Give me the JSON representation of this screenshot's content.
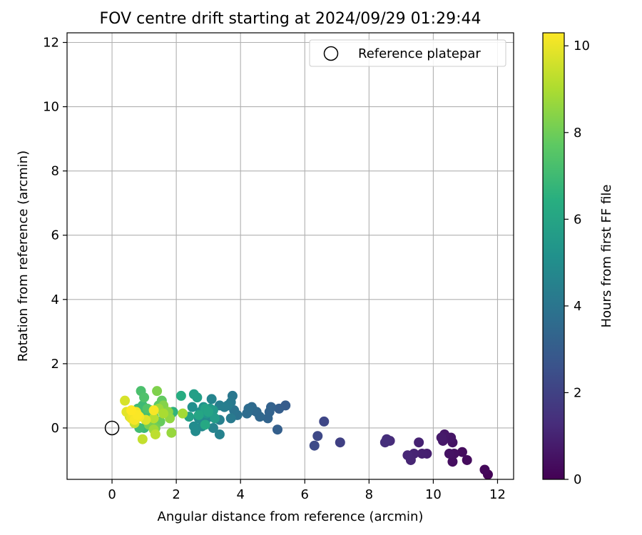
{
  "chart_data": {
    "type": "scatter",
    "title": "FOV centre drift starting at 2024/09/29 01:29:44",
    "xlabel": "Angular distance from reference (arcmin)",
    "ylabel": "Rotation from reference (arcmin)",
    "xlim": [
      -1.4,
      12.5
    ],
    "ylim": [
      -1.6,
      12.3
    ],
    "xticks": [
      0,
      2,
      4,
      6,
      8,
      10,
      12
    ],
    "yticks": [
      0,
      2,
      4,
      6,
      8,
      10,
      12
    ],
    "grid": true,
    "legend": {
      "position": "top-right",
      "entries": [
        "Reference platepar"
      ]
    },
    "colorbar": {
      "label": "Hours from first FF file",
      "range": [
        0,
        10.3
      ],
      "ticks": [
        0,
        2,
        4,
        6,
        8,
        10
      ],
      "colormap": "viridis"
    },
    "reference_point": {
      "x": 0,
      "y": 0
    },
    "points": [
      {
        "x": 11.7,
        "y": -1.45,
        "c": 0.1
      },
      {
        "x": 11.6,
        "y": -1.3,
        "c": 0.2
      },
      {
        "x": 11.05,
        "y": -1.0,
        "c": 0.3
      },
      {
        "x": 10.9,
        "y": -0.75,
        "c": 0.35
      },
      {
        "x": 10.6,
        "y": -1.05,
        "c": 0.4
      },
      {
        "x": 10.65,
        "y": -0.8,
        "c": 0.45
      },
      {
        "x": 10.5,
        "y": -0.8,
        "c": 0.5
      },
      {
        "x": 10.6,
        "y": -0.45,
        "c": 0.55
      },
      {
        "x": 10.55,
        "y": -0.3,
        "c": 0.6
      },
      {
        "x": 10.35,
        "y": -0.2,
        "c": 0.65
      },
      {
        "x": 10.3,
        "y": -0.4,
        "c": 0.7
      },
      {
        "x": 10.25,
        "y": -0.3,
        "c": 0.75
      },
      {
        "x": 9.8,
        "y": -0.8,
        "c": 0.9
      },
      {
        "x": 9.65,
        "y": -0.8,
        "c": 0.95
      },
      {
        "x": 9.55,
        "y": -0.45,
        "c": 1.0
      },
      {
        "x": 9.4,
        "y": -0.8,
        "c": 1.05
      },
      {
        "x": 9.3,
        "y": -1.0,
        "c": 1.1
      },
      {
        "x": 9.2,
        "y": -0.85,
        "c": 1.15
      },
      {
        "x": 8.65,
        "y": -0.4,
        "c": 1.3
      },
      {
        "x": 8.55,
        "y": -0.35,
        "c": 1.35
      },
      {
        "x": 8.5,
        "y": -0.45,
        "c": 1.4
      },
      {
        "x": 7.1,
        "y": -0.45,
        "c": 2.0
      },
      {
        "x": 6.6,
        "y": 0.2,
        "c": 2.2
      },
      {
        "x": 6.4,
        "y": -0.25,
        "c": 2.3
      },
      {
        "x": 6.3,
        "y": -0.55,
        "c": 2.35
      },
      {
        "x": 5.4,
        "y": 0.7,
        "c": 3.0
      },
      {
        "x": 5.2,
        "y": 0.6,
        "c": 3.1
      },
      {
        "x": 5.15,
        "y": -0.05,
        "c": 3.15
      },
      {
        "x": 4.95,
        "y": 0.65,
        "c": 3.25
      },
      {
        "x": 4.9,
        "y": 0.5,
        "c": 3.3
      },
      {
        "x": 4.85,
        "y": 0.3,
        "c": 3.35
      },
      {
        "x": 4.6,
        "y": 0.35,
        "c": 3.45
      },
      {
        "x": 4.5,
        "y": 0.5,
        "c": 3.5
      },
      {
        "x": 4.4,
        "y": 0.55,
        "c": 3.55
      },
      {
        "x": 4.35,
        "y": 0.65,
        "c": 3.6
      },
      {
        "x": 4.25,
        "y": 0.6,
        "c": 3.65
      },
      {
        "x": 4.2,
        "y": 0.45,
        "c": 3.7
      },
      {
        "x": 3.9,
        "y": 0.4,
        "c": 3.9
      },
      {
        "x": 3.8,
        "y": 0.55,
        "c": 4.0
      },
      {
        "x": 3.75,
        "y": 1.0,
        "c": 4.1
      },
      {
        "x": 3.7,
        "y": 0.8,
        "c": 4.2
      },
      {
        "x": 3.7,
        "y": 0.3,
        "c": 4.25
      },
      {
        "x": 3.6,
        "y": 0.7,
        "c": 4.3
      },
      {
        "x": 3.5,
        "y": 0.65,
        "c": 4.35
      },
      {
        "x": 3.35,
        "y": 0.7,
        "c": 4.4
      },
      {
        "x": 3.35,
        "y": 0.25,
        "c": 4.5
      },
      {
        "x": 3.35,
        "y": -0.2,
        "c": 4.55
      },
      {
        "x": 3.15,
        "y": 0.0,
        "c": 4.6
      },
      {
        "x": 3.1,
        "y": 0.9,
        "c": 4.65
      },
      {
        "x": 3.05,
        "y": 0.35,
        "c": 4.7
      },
      {
        "x": 2.9,
        "y": 0.2,
        "c": 4.8
      },
      {
        "x": 2.8,
        "y": 0.05,
        "c": 4.85
      },
      {
        "x": 2.7,
        "y": 0.3,
        "c": 4.9
      },
      {
        "x": 2.6,
        "y": -0.1,
        "c": 4.95
      },
      {
        "x": 2.55,
        "y": 0.05,
        "c": 5.0
      },
      {
        "x": 2.5,
        "y": 0.65,
        "c": 5.1
      },
      {
        "x": 2.75,
        "y": 0.5,
        "c": 5.2
      },
      {
        "x": 2.85,
        "y": 0.65,
        "c": 5.3
      },
      {
        "x": 2.95,
        "y": 0.45,
        "c": 5.4
      },
      {
        "x": 3.05,
        "y": 0.6,
        "c": 5.5
      },
      {
        "x": 3.15,
        "y": 0.55,
        "c": 5.6
      },
      {
        "x": 3.2,
        "y": 0.3,
        "c": 5.7
      },
      {
        "x": 2.65,
        "y": 0.95,
        "c": 5.75
      },
      {
        "x": 2.55,
        "y": 1.05,
        "c": 5.8
      },
      {
        "x": 2.4,
        "y": 0.35,
        "c": 5.85
      },
      {
        "x": 2.9,
        "y": 0.6,
        "c": 5.95
      },
      {
        "x": 3.0,
        "y": 0.5,
        "c": 6.0
      },
      {
        "x": 2.7,
        "y": 0.4,
        "c": 6.1
      },
      {
        "x": 2.9,
        "y": 0.1,
        "c": 6.2
      },
      {
        "x": 2.15,
        "y": 1.0,
        "c": 6.4
      },
      {
        "x": 1.9,
        "y": 0.5,
        "c": 6.6
      },
      {
        "x": 1.85,
        "y": 0.45,
        "c": 6.7
      },
      {
        "x": 1.2,
        "y": 0.55,
        "c": 6.8
      },
      {
        "x": 1.0,
        "y": 0.0,
        "c": 6.9
      },
      {
        "x": 0.95,
        "y": 0.7,
        "c": 7.0
      },
      {
        "x": 0.8,
        "y": 0.6,
        "c": 7.05
      },
      {
        "x": 0.85,
        "y": 0.0,
        "c": 7.1
      },
      {
        "x": 1.05,
        "y": 0.45,
        "c": 7.2
      },
      {
        "x": 0.9,
        "y": 1.15,
        "c": 7.3
      },
      {
        "x": 1.0,
        "y": 0.95,
        "c": 7.4
      },
      {
        "x": 1.1,
        "y": 0.6,
        "c": 7.5
      },
      {
        "x": 1.3,
        "y": 0.35,
        "c": 7.6
      },
      {
        "x": 1.45,
        "y": 0.7,
        "c": 7.7
      },
      {
        "x": 1.55,
        "y": 0.85,
        "c": 7.8
      },
      {
        "x": 1.5,
        "y": 0.2,
        "c": 7.9
      },
      {
        "x": 1.7,
        "y": 0.5,
        "c": 8.0
      },
      {
        "x": 1.35,
        "y": 0.0,
        "c": 8.1
      },
      {
        "x": 1.15,
        "y": 0.1,
        "c": 8.2
      },
      {
        "x": 1.4,
        "y": 1.15,
        "c": 8.3
      },
      {
        "x": 1.6,
        "y": 0.7,
        "c": 8.4
      },
      {
        "x": 1.75,
        "y": 0.5,
        "c": 8.5
      },
      {
        "x": 1.8,
        "y": 0.3,
        "c": 8.6
      },
      {
        "x": 1.85,
        "y": -0.15,
        "c": 8.7
      },
      {
        "x": 1.45,
        "y": 0.6,
        "c": 8.8
      },
      {
        "x": 1.3,
        "y": -0.05,
        "c": 8.85
      },
      {
        "x": 2.2,
        "y": 0.45,
        "c": 8.9
      },
      {
        "x": 1.6,
        "y": 0.45,
        "c": 9.0
      },
      {
        "x": 1.3,
        "y": 0.3,
        "c": 9.2
      },
      {
        "x": 1.35,
        "y": -0.2,
        "c": 9.3
      },
      {
        "x": 0.95,
        "y": -0.35,
        "c": 9.4
      },
      {
        "x": 0.7,
        "y": 0.15,
        "c": 9.5
      },
      {
        "x": 0.55,
        "y": 0.35,
        "c": 9.6
      },
      {
        "x": 0.4,
        "y": 0.85,
        "c": 9.7
      },
      {
        "x": 1.05,
        "y": 0.25,
        "c": 9.8
      },
      {
        "x": 0.45,
        "y": 0.5,
        "c": 9.9
      },
      {
        "x": 0.6,
        "y": 0.3,
        "c": 10.0
      },
      {
        "x": 0.75,
        "y": 0.5,
        "c": 10.05
      },
      {
        "x": 0.65,
        "y": 0.45,
        "c": 10.1
      },
      {
        "x": 0.85,
        "y": 0.35,
        "c": 10.15
      },
      {
        "x": 0.7,
        "y": 0.25,
        "c": 10.2
      },
      {
        "x": 1.3,
        "y": 0.55,
        "c": 10.2
      },
      {
        "x": 0.8,
        "y": 0.4,
        "c": 10.25
      },
      {
        "x": 0.6,
        "y": 0.55,
        "c": 10.3
      }
    ]
  }
}
